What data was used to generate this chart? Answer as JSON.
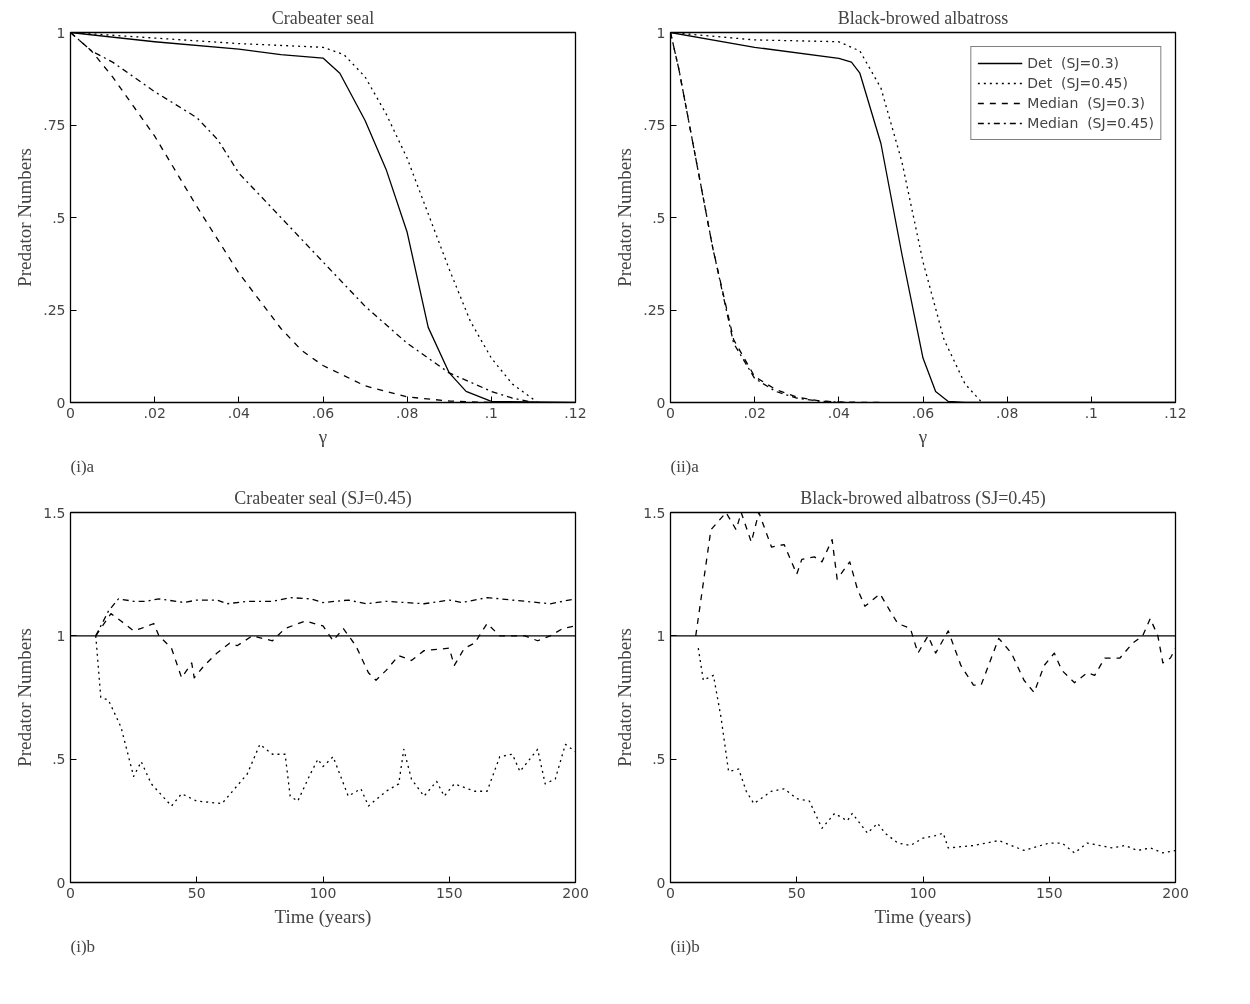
{
  "chart_data": [
    {
      "type": "line",
      "title": "Crabeater seal",
      "xlabel": "γ",
      "ylabel": "Predator Numbers",
      "annotations": [
        "(i)a"
      ],
      "xlim": [
        0,
        0.12
      ],
      "ylim": [
        0,
        1
      ],
      "xticks": [
        0,
        {
          "value": 0.02,
          "label": ".02"
        },
        {
          "value": 0.04,
          "label": ".04"
        },
        {
          "value": 0.06,
          "label": ".06"
        },
        {
          "value": 0.08,
          "label": ".08"
        },
        {
          "value": 0.1,
          "label": ".1"
        },
        {
          "value": 0.12,
          "label": ".12"
        }
      ],
      "yticks": [
        0,
        {
          "value": 0.25,
          "label": ".25"
        },
        {
          "value": 0.5,
          "label": ".5"
        },
        {
          "value": 0.75,
          "label": ".75"
        },
        1
      ],
      "series": [
        {
          "color": "#000000",
          "line_style": "solid",
          "x": [
            0,
            0.02,
            0.04,
            0.05,
            0.06,
            0.064,
            0.07,
            0.075,
            0.08,
            0.085,
            0.09,
            0.094,
            0.1,
            0.12
          ],
          "values": [
            1,
            0.975,
            0.955,
            0.94,
            0.931,
            0.89,
            0.762,
            0.63,
            0.46,
            0.203,
            0.08,
            0.03,
            0.003,
            0
          ]
        },
        {
          "color": "#000000",
          "line_style": "dotted",
          "x": [
            0,
            0.02,
            0.04,
            0.06,
            0.065,
            0.07,
            0.075,
            0.08,
            0.085,
            0.09,
            0.095,
            0.1,
            0.105,
            0.111
          ],
          "values": [
            1,
            0.985,
            0.97,
            0.96,
            0.94,
            0.88,
            0.78,
            0.66,
            0.51,
            0.36,
            0.22,
            0.12,
            0.05,
            0
          ]
        },
        {
          "color": "#000000",
          "line_style": "dashed",
          "x": [
            0,
            0.005,
            0.01,
            0.02,
            0.03,
            0.04,
            0.05,
            0.055,
            0.06,
            0.07,
            0.08,
            0.09,
            0.1
          ],
          "values": [
            1,
            0.95,
            0.88,
            0.72,
            0.53,
            0.35,
            0.2,
            0.14,
            0.1,
            0.045,
            0.015,
            0.004,
            0
          ]
        },
        {
          "color": "#000000",
          "line_style": "dashdot",
          "x": [
            0,
            0.005,
            0.01,
            0.02,
            0.03,
            0.035,
            0.04,
            0.05,
            0.06,
            0.07,
            0.08,
            0.09,
            0.1,
            0.105,
            0.11
          ],
          "values": [
            1,
            0.95,
            0.92,
            0.84,
            0.77,
            0.71,
            0.62,
            0.5,
            0.38,
            0.26,
            0.16,
            0.08,
            0.03,
            0.012,
            0
          ]
        }
      ]
    },
    {
      "type": "line",
      "title": "Black-browed albatross",
      "xlabel": "γ",
      "ylabel": "Predator Numbers",
      "annotations": [
        "(ii)a"
      ],
      "legend": "top right",
      "xlim": [
        0,
        0.12
      ],
      "ylim": [
        0,
        1
      ],
      "xticks": [
        0,
        {
          "value": 0.02,
          "label": ".02"
        },
        {
          "value": 0.04,
          "label": ".04"
        },
        {
          "value": 0.06,
          "label": ".06"
        },
        {
          "value": 0.08,
          "label": ".08"
        },
        {
          "value": 0.1,
          "label": ".1"
        },
        {
          "value": 0.12,
          "label": ".12"
        }
      ],
      "yticks": [
        0,
        {
          "value": 0.25,
          "label": ".25"
        },
        {
          "value": 0.5,
          "label": ".5"
        },
        {
          "value": 0.75,
          "label": ".75"
        },
        1
      ],
      "series": [
        {
          "name": "Det  (SJ=0.3)",
          "color": "#000000",
          "line_style": "solid",
          "x": [
            0,
            0.02,
            0.04,
            0.043,
            0.045,
            0.05,
            0.055,
            0.06,
            0.063,
            0.066,
            0.07,
            0.12
          ],
          "values": [
            1,
            0.96,
            0.93,
            0.92,
            0.89,
            0.7,
            0.4,
            0.12,
            0.03,
            0.003,
            0,
            0
          ]
        },
        {
          "name": "Det  (SJ=0.45)",
          "color": "#000000",
          "line_style": "dotted",
          "x": [
            0,
            0.02,
            0.04,
            0.045,
            0.05,
            0.055,
            0.06,
            0.065,
            0.07,
            0.074
          ],
          "values": [
            1,
            0.98,
            0.975,
            0.95,
            0.85,
            0.65,
            0.38,
            0.17,
            0.05,
            0
          ]
        },
        {
          "name": "Median  (SJ=0.3)",
          "color": "#000000",
          "line_style": "dashed",
          "x": [
            0,
            0.002,
            0.005,
            0.01,
            0.015,
            0.02,
            0.025,
            0.03,
            0.035,
            0.04,
            0.05
          ],
          "values": [
            1,
            0.9,
            0.72,
            0.42,
            0.17,
            0.07,
            0.035,
            0.015,
            0.005,
            0.001,
            0
          ]
        },
        {
          "name": "Median  (SJ=0.45)",
          "color": "#000000",
          "line_style": "dashdot",
          "x": [
            0,
            0.002,
            0.005,
            0.01,
            0.015,
            0.02,
            0.025,
            0.03,
            0.035,
            0.042
          ],
          "values": [
            1,
            0.9,
            0.72,
            0.42,
            0.16,
            0.065,
            0.03,
            0.012,
            0.004,
            0
          ]
        }
      ]
    },
    {
      "type": "line",
      "title": "Crabeater seal (SJ=0.45)",
      "xlabel": "Time (years)",
      "ylabel": "Predator Numbers",
      "annotations": [
        "(i)b"
      ],
      "xlim": [
        0,
        200
      ],
      "ylim": [
        0,
        1.5
      ],
      "xticks": [
        0,
        50,
        100,
        150,
        200
      ],
      "yticks": [
        0,
        {
          "value": 0.5,
          "label": ".5"
        },
        1,
        1.5
      ],
      "series": [
        {
          "color": "#000000",
          "line_style": "solid",
          "x": [
            0,
            200
          ],
          "values": [
            1,
            1
          ]
        },
        {
          "color": "#000000",
          "line_style": "dashdot",
          "x": [
            10,
            15,
            19,
            25,
            30,
            35,
            45,
            50,
            58,
            62,
            70,
            80,
            87,
            95,
            100,
            110,
            117,
            125,
            140,
            150,
            155,
            165,
            180,
            190,
            200
          ],
          "values": [
            1,
            1.1,
            1.15,
            1.14,
            1.14,
            1.15,
            1.135,
            1.145,
            1.145,
            1.13,
            1.14,
            1.14,
            1.155,
            1.15,
            1.135,
            1.145,
            1.13,
            1.14,
            1.13,
            1.145,
            1.135,
            1.155,
            1.14,
            1.13,
            1.15
          ]
        },
        {
          "color": "#000000",
          "line_style": "dashed",
          "x": [
            10,
            16,
            20,
            25,
            28,
            33,
            35,
            40,
            44,
            48,
            49,
            53,
            58,
            63,
            66,
            72,
            80,
            85,
            93,
            100,
            104,
            108,
            113,
            118,
            121,
            125,
            130,
            135,
            140,
            150,
            152,
            156,
            160,
            165,
            170,
            180,
            185,
            190,
            195,
            200
          ],
          "values": [
            1,
            1.09,
            1.06,
            1.02,
            1.03,
            1.05,
            1.0,
            0.95,
            0.83,
            0.89,
            0.83,
            0.88,
            0.93,
            0.97,
            0.96,
            1.0,
            0.98,
            1.03,
            1.06,
            1.04,
            0.98,
            1.03,
            0.96,
            0.85,
            0.82,
            0.86,
            0.92,
            0.9,
            0.94,
            0.95,
            0.88,
            0.95,
            0.97,
            1.05,
            1.0,
            1.0,
            0.98,
            1.0,
            1.03,
            1.04
          ]
        },
        {
          "color": "#000000",
          "line_style": "dotted",
          "x": [
            10,
            12,
            15,
            20,
            25,
            28,
            32,
            40,
            44,
            50,
            60,
            65,
            70,
            75,
            80,
            85,
            87,
            90,
            95,
            98,
            100,
            104,
            110,
            115,
            118,
            125,
            130,
            132,
            135,
            140,
            145,
            148,
            152,
            160,
            165,
            170,
            175,
            178,
            185,
            188,
            192,
            196,
            200
          ],
          "values": [
            1,
            0.75,
            0.74,
            0.63,
            0.43,
            0.49,
            0.4,
            0.31,
            0.36,
            0.33,
            0.32,
            0.38,
            0.44,
            0.56,
            0.52,
            0.52,
            0.35,
            0.33,
            0.44,
            0.5,
            0.47,
            0.51,
            0.35,
            0.38,
            0.31,
            0.37,
            0.4,
            0.54,
            0.42,
            0.35,
            0.41,
            0.35,
            0.4,
            0.37,
            0.37,
            0.51,
            0.52,
            0.45,
            0.54,
            0.4,
            0.42,
            0.56,
            0.53
          ]
        }
      ]
    },
    {
      "type": "line",
      "title": "Black-browed albatross (SJ=0.45)",
      "xlabel": "Time (years)",
      "ylabel": "Predator Numbers",
      "annotations": [
        "(ii)b"
      ],
      "xlim": [
        0,
        200
      ],
      "ylim": [
        0,
        1.5
      ],
      "xticks": [
        0,
        50,
        100,
        150,
        200
      ],
      "yticks": [
        0,
        {
          "value": 0.5,
          "label": ".5"
        },
        1,
        1.5
      ],
      "series": [
        {
          "color": "#000000",
          "line_style": "solid",
          "x": [
            0,
            200
          ],
          "values": [
            1,
            1
          ]
        },
        {
          "color": "#000000",
          "line_style": "dashed",
          "x": [
            10,
            16,
            22,
            26,
            28,
            32,
            35,
            40,
            45,
            50,
            52,
            57,
            60,
            64,
            66,
            71,
            74,
            77,
            83,
            87,
            90,
            95,
            98,
            102,
            105,
            110,
            115,
            120,
            123,
            130,
            135,
            140,
            144,
            148,
            152,
            155,
            160,
            165,
            168,
            172,
            178,
            183,
            187,
            190,
            193,
            195,
            198,
            200
          ],
          "values": [
            1,
            1.43,
            1.5,
            1.43,
            1.5,
            1.38,
            1.5,
            1.36,
            1.37,
            1.25,
            1.31,
            1.32,
            1.3,
            1.39,
            1.23,
            1.3,
            1.19,
            1.12,
            1.17,
            1.1,
            1.05,
            1.03,
            0.93,
            1.0,
            0.93,
            1.02,
            0.88,
            0.8,
            0.8,
            0.99,
            0.93,
            0.82,
            0.77,
            0.88,
            0.93,
            0.86,
            0.81,
            0.85,
            0.84,
            0.91,
            0.91,
            0.97,
            1.0,
            1.07,
            1.0,
            0.89,
            0.91,
            0.95
          ]
        },
        {
          "color": "#000000",
          "line_style": "dotted",
          "x": [
            11,
            13,
            17,
            20,
            23,
            27,
            30,
            33,
            40,
            45,
            50,
            55,
            60,
            65,
            70,
            72,
            75,
            78,
            82,
            85,
            90,
            95,
            100,
            105,
            108,
            110,
            120,
            130,
            140,
            150,
            155,
            160,
            165,
            175,
            180,
            185,
            190,
            195,
            200
          ],
          "values": [
            0.95,
            0.82,
            0.84,
            0.67,
            0.45,
            0.46,
            0.37,
            0.32,
            0.37,
            0.38,
            0.34,
            0.33,
            0.22,
            0.28,
            0.25,
            0.28,
            0.24,
            0.2,
            0.24,
            0.2,
            0.16,
            0.15,
            0.18,
            0.19,
            0.2,
            0.14,
            0.15,
            0.17,
            0.13,
            0.16,
            0.16,
            0.12,
            0.16,
            0.14,
            0.15,
            0.13,
            0.14,
            0.12,
            0.13
          ]
        }
      ]
    }
  ]
}
